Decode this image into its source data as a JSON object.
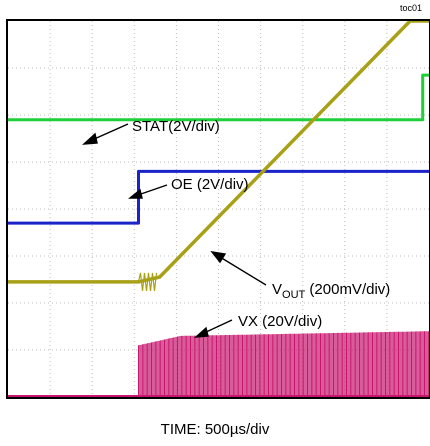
{
  "figure_id": "toc01",
  "chart_data": {
    "type": "line",
    "title": "",
    "xlabel": "TIME: 500µs/div",
    "ylabel": "",
    "grid": true,
    "x_divisions": 10,
    "y_divisions": 8,
    "x_range_div": [
      0,
      10
    ],
    "y_range_div": [
      0,
      8
    ],
    "series": [
      {
        "name": "STAT(2V/div)",
        "color": "#1fcf3a",
        "x": [
          0,
          9.85,
          9.85,
          10
        ],
        "y": [
          5.9,
          5.9,
          6.85,
          6.85
        ]
      },
      {
        "name": "OE (2V/div)",
        "color": "#1a23c8",
        "x": [
          0,
          3.1,
          3.1,
          10
        ],
        "y": [
          3.7,
          3.7,
          4.8,
          4.8
        ]
      },
      {
        "name": "V_OUT (200mV/div)",
        "color": "#a8a016",
        "x": [
          0,
          3.1,
          3.6,
          9.55,
          10
        ],
        "y": [
          2.45,
          2.45,
          2.55,
          8.0,
          8.0
        ]
      },
      {
        "name": "VX (20V/div)",
        "color": "#c8166e",
        "x": [
          0,
          3.1,
          3.1,
          4.1,
          10
        ],
        "y": [
          0.0,
          0.0,
          1.1,
          1.3,
          1.4
        ]
      }
    ],
    "annotations": [
      {
        "text": "STAT(2V/div)",
        "target": "STAT(2V/div)"
      },
      {
        "text": "OE (2V/div)",
        "target": "OE (2V/div)"
      },
      {
        "text": "V",
        "sub": "OUT",
        "suffix": " (200mV/div)",
        "target": "V_OUT (200mV/div)"
      },
      {
        "text": "VX (20V/div)",
        "target": "VX (20V/div)"
      }
    ]
  }
}
